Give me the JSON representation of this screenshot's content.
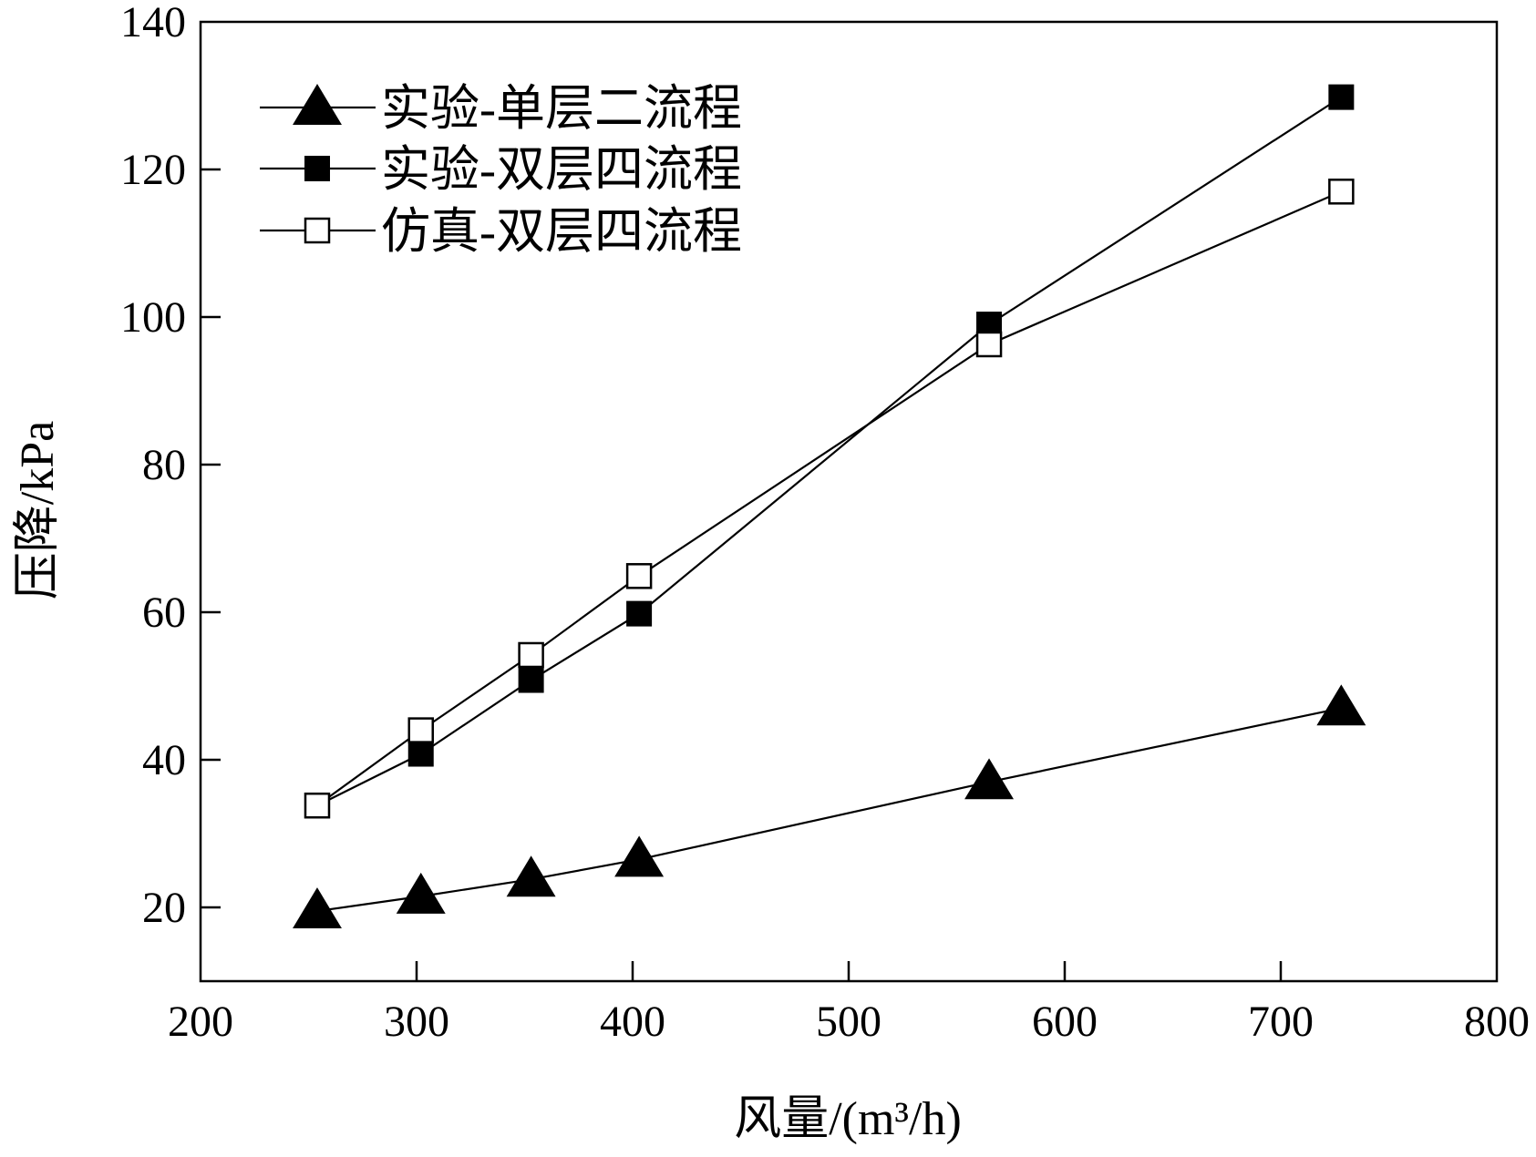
{
  "chart_data": {
    "type": "line",
    "xlabel": "风量/(m³/h)",
    "ylabel": "压降/kPa",
    "xlim": [
      200,
      800
    ],
    "ylim": [
      10,
      140
    ],
    "xticks": [
      200,
      300,
      400,
      500,
      600,
      700,
      800
    ],
    "yticks": [
      20,
      40,
      60,
      80,
      100,
      120,
      140
    ],
    "grid": false,
    "legend_position": "top-left",
    "series": [
      {
        "name": "实验-单层二流程",
        "marker": "filled-triangle",
        "x": [
          254,
          302,
          353,
          403,
          565,
          728
        ],
        "y": [
          19.5,
          21.5,
          23.8,
          26.5,
          37,
          47
        ]
      },
      {
        "name": "实验-双层四流程",
        "marker": "filled-square",
        "x": [
          254,
          302,
          353,
          403,
          565,
          728
        ],
        "y": [
          33.8,
          40.8,
          50.8,
          59.8,
          99,
          129.8
        ]
      },
      {
        "name": "仿真-双层四流程",
        "marker": "open-square",
        "x": [
          254,
          302,
          353,
          403,
          565,
          728
        ],
        "y": [
          33.8,
          44,
          54.2,
          64.9,
          96.3,
          117
        ]
      }
    ]
  }
}
